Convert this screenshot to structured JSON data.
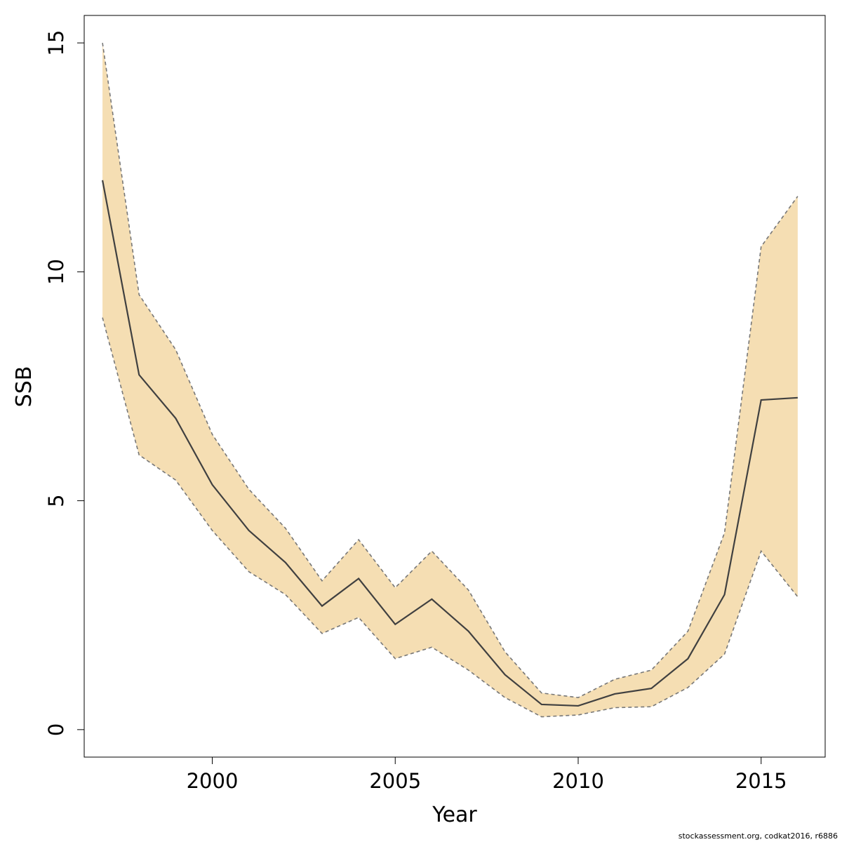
{
  "chart_data": {
    "type": "line",
    "xlabel": "Year",
    "ylabel": "SSB",
    "xlim": [
      1996.5,
      2016.75
    ],
    "ylim": [
      -0.6,
      15.6
    ],
    "x_ticks": [
      2000,
      2005,
      2010,
      2015
    ],
    "y_ticks": [
      0,
      5,
      10,
      15
    ],
    "grid": false,
    "legend": "none",
    "x": [
      1997,
      1998,
      1999,
      2000,
      2001,
      2002,
      2003,
      2004,
      2005,
      2006,
      2007,
      2008,
      2009,
      2010,
      2011,
      2012,
      2013,
      2014,
      2015,
      2016
    ],
    "series": [
      {
        "role": "estimate",
        "values": [
          12.0,
          7.75,
          6.8,
          5.35,
          4.35,
          3.65,
          2.7,
          3.3,
          2.3,
          2.85,
          2.15,
          1.2,
          0.55,
          0.52,
          0.78,
          0.9,
          1.55,
          2.95,
          7.2,
          7.25
        ]
      },
      {
        "role": "upper",
        "values": [
          15.0,
          9.5,
          8.3,
          6.45,
          5.25,
          4.4,
          3.25,
          4.15,
          3.1,
          3.9,
          3.05,
          1.7,
          0.8,
          0.7,
          1.1,
          1.3,
          2.15,
          4.3,
          10.55,
          11.65
        ]
      },
      {
        "role": "lower",
        "values": [
          9.0,
          6.0,
          5.45,
          4.35,
          3.45,
          2.95,
          2.1,
          2.45,
          1.55,
          1.8,
          1.3,
          0.7,
          0.28,
          0.32,
          0.48,
          0.5,
          0.92,
          1.65,
          3.9,
          2.9
        ]
      }
    ],
    "colors": {
      "band": "#f5deb3",
      "estimate": "#404040",
      "bounds": "#777777",
      "axes": "#000000"
    }
  },
  "footer": "stockassessment.org, codkat2016, r6886"
}
